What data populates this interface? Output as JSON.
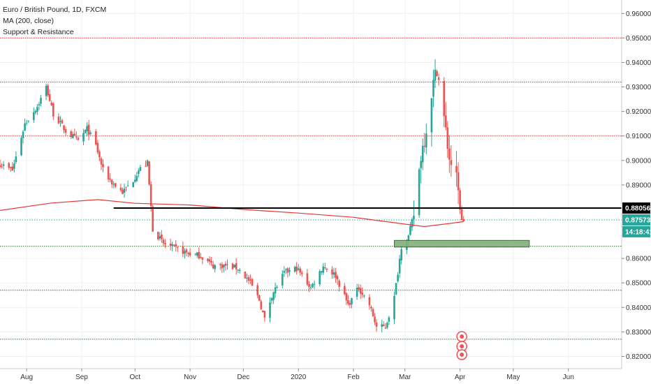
{
  "legend": {
    "symbol": "Euro / British Pound, 1D, FXCM",
    "ma": "MA (200, close)",
    "sr": "Support & Resistance"
  },
  "colors": {
    "up": "#26a69a",
    "down": "#ef5350",
    "ma": "#e53935",
    "resistance": "#e53935",
    "support": "#2e7d32",
    "level": "#000000",
    "current": "#26a69a",
    "zone": "#81b07a"
  },
  "chart_data": {
    "type": "candlestick",
    "title": "Euro / British Pound, 1D, FXCM",
    "y_range": [
      0.815,
      0.9655
    ],
    "x_range": [
      "2019-07-17",
      "2020-07-01"
    ],
    "y_ticks": [
      "0.96000",
      "0.95000",
      "0.94000",
      "0.93000",
      "0.92000",
      "0.91000",
      "0.90000",
      "0.89000",
      "0.86000",
      "0.85000",
      "0.84000",
      "0.83000",
      "0.82000"
    ],
    "x_ticks": [
      {
        "date": "2019-08-01",
        "label": "Aug"
      },
      {
        "date": "2019-09-01",
        "label": "Sep"
      },
      {
        "date": "2019-10-01",
        "label": "Oct"
      },
      {
        "date": "2019-11-01",
        "label": "Nov"
      },
      {
        "date": "2019-12-01",
        "label": "Dec"
      },
      {
        "date": "2020-01-01",
        "label": "2020"
      },
      {
        "date": "2020-02-01",
        "label": "Feb"
      },
      {
        "date": "2020-03-01",
        "label": "Mar"
      },
      {
        "date": "2020-04-01",
        "label": "Apr"
      },
      {
        "date": "2020-05-01",
        "label": "May"
      },
      {
        "date": "2020-06-01",
        "label": "Jun"
      }
    ],
    "closes": [
      [
        "2019-07-17",
        0.8985
      ],
      [
        "2019-07-24",
        0.896
      ],
      [
        "2019-07-31",
        0.915
      ],
      [
        "2019-08-07",
        0.922
      ],
      [
        "2019-08-12",
        0.93
      ],
      [
        "2019-08-16",
        0.919
      ],
      [
        "2019-08-23",
        0.912
      ],
      [
        "2019-08-30",
        0.908
      ],
      [
        "2019-09-04",
        0.913
      ],
      [
        "2019-09-09",
        0.906
      ],
      [
        "2019-09-13",
        0.896
      ],
      [
        "2019-09-18",
        0.891
      ],
      [
        "2019-09-24",
        0.887
      ],
      [
        "2019-09-30",
        0.892
      ],
      [
        "2019-10-03",
        0.896
      ],
      [
        "2019-10-08",
        0.899
      ],
      [
        "2019-10-11",
        0.872
      ],
      [
        "2019-10-17",
        0.866
      ],
      [
        "2019-10-24",
        0.864
      ],
      [
        "2019-10-31",
        0.862
      ],
      [
        "2019-11-07",
        0.861
      ],
      [
        "2019-11-14",
        0.857
      ],
      [
        "2019-11-21",
        0.857
      ],
      [
        "2019-11-28",
        0.856
      ],
      [
        "2019-12-05",
        0.85
      ],
      [
        "2019-12-10",
        0.843
      ],
      [
        "2019-12-13",
        0.835
      ],
      [
        "2019-12-17",
        0.845
      ],
      [
        "2019-12-24",
        0.854
      ],
      [
        "2019-12-31",
        0.856
      ],
      [
        "2020-01-08",
        0.848
      ],
      [
        "2020-01-15",
        0.857
      ],
      [
        "2020-01-22",
        0.853
      ],
      [
        "2020-01-29",
        0.841
      ],
      [
        "2020-02-04",
        0.848
      ],
      [
        "2020-02-10",
        0.841
      ],
      [
        "2020-02-14",
        0.832
      ],
      [
        "2020-02-19",
        0.832
      ],
      [
        "2020-02-24",
        0.844
      ],
      [
        "2020-02-28",
        0.865
      ],
      [
        "2020-03-03",
        0.869
      ],
      [
        "2020-03-06",
        0.878
      ],
      [
        "2020-03-10",
        0.902
      ],
      [
        "2020-03-13",
        0.913
      ],
      [
        "2020-03-16",
        0.928
      ],
      [
        "2020-03-19",
        0.938
      ],
      [
        "2020-03-23",
        0.917
      ],
      [
        "2020-03-26",
        0.901
      ],
      [
        "2020-03-30",
        0.892
      ],
      [
        "2020-04-02",
        0.875
      ],
      [
        "2020-04-03",
        0.8757
      ]
    ],
    "moving_average": {
      "name": "MA (200, close)",
      "points": [
        [
          "2019-07-17",
          0.8796
        ],
        [
          "2019-08-15",
          0.8826
        ],
        [
          "2019-09-10",
          0.884
        ],
        [
          "2019-10-01",
          0.8825
        ],
        [
          "2019-11-01",
          0.8818
        ],
        [
          "2019-12-01",
          0.88
        ],
        [
          "2020-01-01",
          0.8785
        ],
        [
          "2020-02-01",
          0.8768
        ],
        [
          "2020-03-01",
          0.874
        ],
        [
          "2020-03-12",
          0.873
        ],
        [
          "2020-04-03",
          0.875
        ]
      ]
    },
    "resistance_levels": [
      0.95,
      0.932,
      0.91
    ],
    "support_levels": [
      0.865,
      0.847,
      0.827
    ],
    "horizontal_level": {
      "value": 0.88056,
      "from": "2019-09-19"
    },
    "demand_zone": {
      "from": "2020-02-24",
      "to": "2020-05-10",
      "low": 0.8655,
      "high": 0.8665
    },
    "current_price": 0.87573
  },
  "price_tags": {
    "level": "0.88056",
    "current": "0.87573",
    "countdown": "14:18:41"
  }
}
